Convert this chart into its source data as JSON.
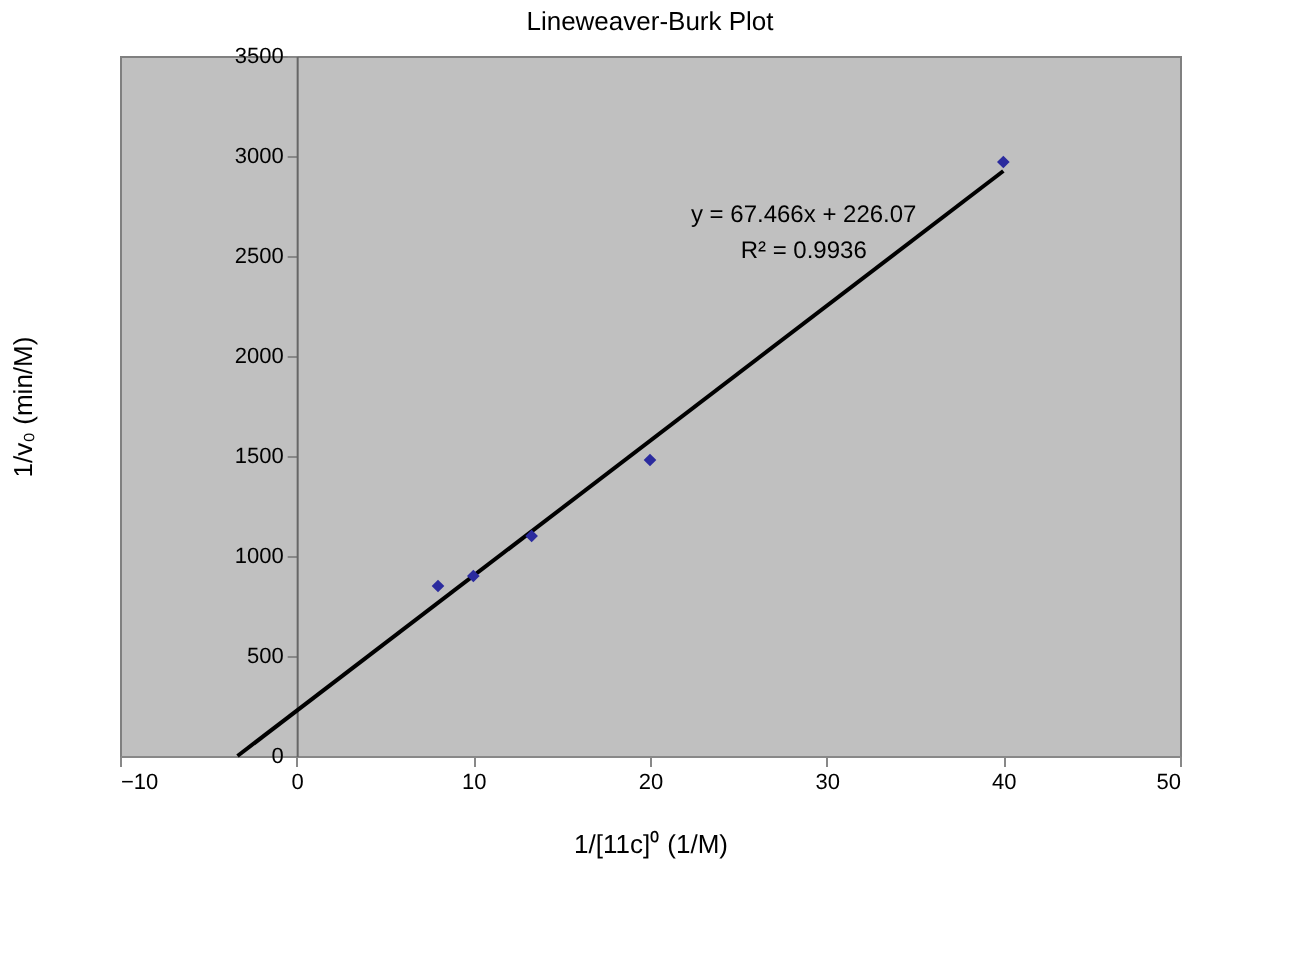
{
  "chart_data": {
    "type": "scatter",
    "title": "Lineweaver-Burk Plot",
    "xlabel": "1/[11c]⁰ (1/M)",
    "ylabel": "1/v₀ (min/M)",
    "xlim": [
      -10,
      50
    ],
    "xticks": [
      -10,
      0,
      10,
      20,
      30,
      40,
      50
    ],
    "ylim": [
      0,
      3500
    ],
    "yticks": [
      0,
      500,
      1000,
      1500,
      2000,
      2500,
      3000,
      3500
    ],
    "grid": false,
    "legend": false,
    "annotations": [
      "y = 67.466x + 226.07",
      "R² = 0.9936"
    ],
    "series": [
      {
        "type": "line",
        "color": "#000000",
        "line_style": "solid",
        "x": [
          -3.35,
          40
        ],
        "values": [
          0,
          2925
        ]
      },
      {
        "color": "#2b2b9e",
        "marker": "diamond",
        "x": [
          8,
          10,
          13.3,
          20,
          40
        ],
        "values": [
          850,
          900,
          1100,
          1480,
          2970
        ]
      }
    ]
  }
}
